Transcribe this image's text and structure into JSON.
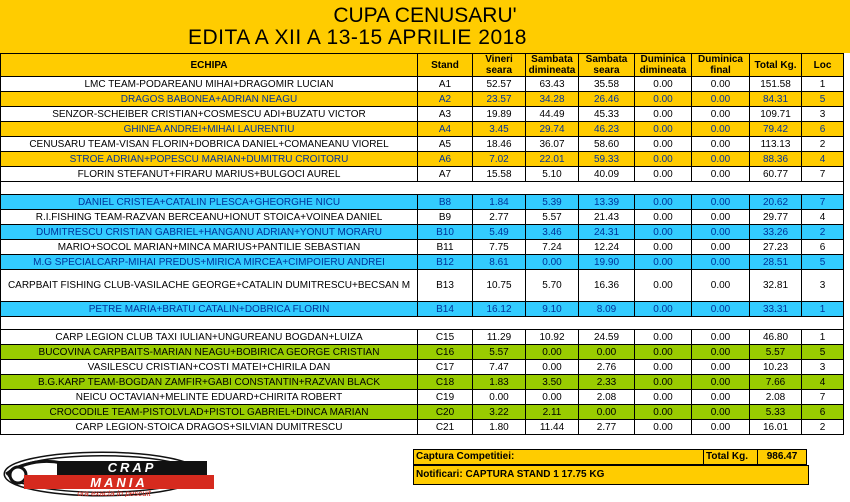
{
  "title": {
    "line1": "CUPA CENUSARU'",
    "line2": "EDITA A XII A  13-15 APRILIE 2018"
  },
  "headers": {
    "team": "ECHIPA",
    "stand": "Stand",
    "vineri": [
      "Vineri",
      "seara"
    ],
    "sambata_dim": [
      "Sambata",
      "dimineata"
    ],
    "sambata_seara": [
      "Sambata",
      "seara"
    ],
    "duminica_dim": [
      "Duminica",
      "dimineata"
    ],
    "duminica_final": [
      "Duminica",
      "final"
    ],
    "total": "Total Kg.",
    "loc": "Loc"
  },
  "colors": {
    "orange": "#ffcc00",
    "cyan": "#33ccff",
    "green": "#99cc00",
    "white": "#ffffff",
    "blue_text": "#003399"
  },
  "groups": [
    {
      "sector": "A",
      "rows": [
        {
          "team": "LMC TEAM-PODAREANU MIHAI+DRAGOMIR LUCIAN",
          "stand": "A1",
          "v1": "52.57",
          "v2": "63.43",
          "v3": "35.58",
          "v4": "0.00",
          "v5": "0.00",
          "total": "151.58",
          "loc": "1",
          "bg": "white"
        },
        {
          "team": "DRAGOS BABONEA+ADRIAN NEAGU",
          "stand": "A2",
          "v1": "23.57",
          "v2": "34.28",
          "v3": "26.46",
          "v4": "0.00",
          "v5": "0.00",
          "total": "84.31",
          "loc": "5",
          "bg": "orange"
        },
        {
          "team": "SENZOR-SCHEIBER CRISTIAN+COSMESCU ADI+BUZATU VICTOR",
          "stand": "A3",
          "v1": "19.89",
          "v2": "44.49",
          "v3": "45.33",
          "v4": "0.00",
          "v5": "0.00",
          "total": "109.71",
          "loc": "3",
          "bg": "white"
        },
        {
          "team": "GHINEA ANDREI+MIHAI LAURENTIU",
          "stand": "A4",
          "v1": "3.45",
          "v2": "29.74",
          "v3": "46.23",
          "v4": "0.00",
          "v5": "0.00",
          "total": "79.42",
          "loc": "6",
          "bg": "orange"
        },
        {
          "team": "CENUSARU TEAM-VISAN FLORIN+DOBRICA DANIEL+COMANEANU VIOREL",
          "stand": "A5",
          "v1": "18.46",
          "v2": "36.07",
          "v3": "58.60",
          "v4": "0.00",
          "v5": "0.00",
          "total": "113.13",
          "loc": "2",
          "bg": "white"
        },
        {
          "team": "STROE ADRIAN+POPESCU MARIAN+DUMITRU CROITORU",
          "stand": "A6",
          "v1": "7.02",
          "v2": "22.01",
          "v3": "59.33",
          "v4": "0.00",
          "v5": "0.00",
          "total": "88.36",
          "loc": "4",
          "bg": "orange"
        },
        {
          "team": "FLORIN STEFANUT+FIRARU MARIUS+BULGOCI AUREL",
          "stand": "A7",
          "v1": "15.58",
          "v2": "5.10",
          "v3": "40.09",
          "v4": "0.00",
          "v5": "0.00",
          "total": "60.77",
          "loc": "7",
          "bg": "white"
        }
      ]
    },
    {
      "sector": "B",
      "rows": [
        {
          "team": "DANIEL CRISTEA+CATALIN PLESCA+GHEORGHE NICU",
          "stand": "B8",
          "v1": "1.84",
          "v2": "5.39",
          "v3": "13.39",
          "v4": "0.00",
          "v5": "0.00",
          "total": "20.62",
          "loc": "7",
          "bg": "cyan"
        },
        {
          "team": "R.I.FISHING TEAM-RAZVAN BERCEANU+IONUT STOICA+VOINEA DANIEL",
          "stand": "B9",
          "v1": "2.77",
          "v2": "5.57",
          "v3": "21.43",
          "v4": "0.00",
          "v5": "0.00",
          "total": "29.77",
          "loc": "4",
          "bg": "white"
        },
        {
          "team": "DUMITRESCU CRISTIAN GABRIEL+HANGANU ADRIAN+YONUT MORARU",
          "stand": "B10",
          "v1": "5.49",
          "v2": "3.46",
          "v3": "24.31",
          "v4": "0.00",
          "v5": "0.00",
          "total": "33.26",
          "loc": "2",
          "bg": "cyan"
        },
        {
          "team": "MARIO+SOCOL MARIAN+MINCA MARIUS+PANTILIE SEBASTIAN",
          "stand": "B11",
          "v1": "7.75",
          "v2": "7.24",
          "v3": "12.24",
          "v4": "0.00",
          "v5": "0.00",
          "total": "27.23",
          "loc": "6",
          "bg": "white"
        },
        {
          "team": "M.G SPECIALCARP-MIHAI PREDUS+MIRICA MIRCEA+CIMPOIERU ANDREI",
          "stand": "B12",
          "v1": "8.61",
          "v2": "0.00",
          "v3": "19.90",
          "v4": "0.00",
          "v5": "0.00",
          "total": "28.51",
          "loc": "5",
          "bg": "cyan"
        },
        {
          "team": "CARPBAIT FISHING CLUB-VASILACHE GEORGE+CATALIN DUMITRESCU+BECSAN M",
          "stand": "B13",
          "v1": "10.75",
          "v2": "5.70",
          "v3": "16.36",
          "v4": "0.00",
          "v5": "0.00",
          "total": "32.81",
          "loc": "3",
          "bg": "white",
          "tall": true
        },
        {
          "team": "PETRE MARIA+BRATU CATALIN+DOBRICA FLORIN",
          "stand": "B14",
          "v1": "16.12",
          "v2": "9.10",
          "v3": "8.09",
          "v4": "0.00",
          "v5": "0.00",
          "total": "33.31",
          "loc": "1",
          "bg": "cyan"
        }
      ]
    },
    {
      "sector": "C",
      "rows": [
        {
          "team": "CARP LEGION CLUB TAXI IULIAN+UNGUREANU BOGDAN+LUIZA",
          "stand": "C15",
          "v1": "11.29",
          "v2": "10.92",
          "v3": "24.59",
          "v4": "0.00",
          "v5": "0.00",
          "total": "46.80",
          "loc": "1",
          "bg": "white"
        },
        {
          "team": "BUCOVINA CARPBAITS-MARIAN NEAGU+BOBIRICA GEORGE CRISTIAN",
          "stand": "C16",
          "v1": "5.57",
          "v2": "0.00",
          "v3": "0.00",
          "v4": "0.00",
          "v5": "0.00",
          "total": "5.57",
          "loc": "5",
          "bg": "green"
        },
        {
          "team": "VASILESCU CRISTIAN+COSTI MATEI+CHIRILA DAN",
          "stand": "C17",
          "v1": "7.47",
          "v2": "0.00",
          "v3": "2.76",
          "v4": "0.00",
          "v5": "0.00",
          "total": "10.23",
          "loc": "3",
          "bg": "white"
        },
        {
          "team": "B.G.KARP TEAM-BOGDAN ZAMFIR+GABI CONSTANTIN+RAZVAN BLACK",
          "stand": "C18",
          "v1": "1.83",
          "v2": "3.50",
          "v3": "2.33",
          "v4": "0.00",
          "v5": "0.00",
          "total": "7.66",
          "loc": "4",
          "bg": "green"
        },
        {
          "team": "NEICU OCTAVIAN+MELINTE EDUARD+CHIRITA ROBERT",
          "stand": "C19",
          "v1": "0.00",
          "v2": "0.00",
          "v3": "2.08",
          "v4": "0.00",
          "v5": "0.00",
          "total": "2.08",
          "loc": "7",
          "bg": "white"
        },
        {
          "team": "CROCODILE TEAM-PISTOLVLAD+PISTOL GABRIEL+DINCA MARIAN",
          "stand": "C20",
          "v1": "3.22",
          "v2": "2.11",
          "v3": "0.00",
          "v4": "0.00",
          "v5": "0.00",
          "total": "5.33",
          "loc": "6",
          "bg": "green"
        },
        {
          "team": "CARP LEGION-STOICA DRAGOS+SILVIAN DUMITRESCU",
          "stand": "C21",
          "v1": "1.80",
          "v2": "11.44",
          "v3": "2.77",
          "v4": "0.00",
          "v5": "0.00",
          "total": "16.01",
          "loc": "2",
          "bg": "white"
        }
      ]
    }
  ],
  "footer": {
    "captura_label": "Captura Competitiei:",
    "total_label": "Total Kg.",
    "total_value": "986.47",
    "notificari": "Notificari: CAPTURA STAND 1 17.75 KG"
  },
  "logo": {
    "text": "CRAP MANIA",
    "tagline": "ora exacta in pescuit",
    "icon": "crap-mania-logo"
  }
}
